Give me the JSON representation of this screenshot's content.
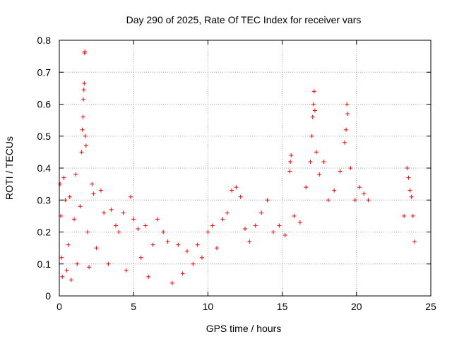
{
  "chart_data": {
    "type": "scatter",
    "title": "Day 290 of 2025, Rate Of TEC Index for receiver vars",
    "xlabel": "GPS time / hours",
    "ylabel": "ROTI / TECUs",
    "xlim": [
      0,
      25
    ],
    "ylim": [
      0,
      0.8
    ],
    "xticks": [
      "0",
      "5",
      "10",
      "15",
      "20",
      "25"
    ],
    "yticks": [
      "0",
      "0.1",
      "0.2",
      "0.3",
      "0.4",
      "0.5",
      "0.6",
      "0.7",
      "0.8"
    ],
    "grid": true,
    "marker": "plus",
    "color": "#ff0000",
    "series": [
      {
        "points": [
          [
            0.05,
            0.35
          ],
          [
            0.1,
            0.25
          ],
          [
            0.15,
            0.12
          ],
          [
            0.2,
            0.06
          ],
          [
            0.3,
            0.37
          ],
          [
            0.4,
            0.3
          ],
          [
            0.5,
            0.08
          ],
          [
            0.6,
            0.16
          ],
          [
            0.7,
            0.31
          ],
          [
            0.8,
            0.05
          ],
          [
            1.0,
            0.24
          ],
          [
            1.1,
            0.38
          ],
          [
            1.2,
            0.1
          ],
          [
            1.4,
            0.28
          ],
          [
            1.5,
            0.45
          ],
          [
            1.55,
            0.52
          ],
          [
            1.6,
            0.56
          ],
          [
            1.62,
            0.615
          ],
          [
            1.65,
            0.645
          ],
          [
            1.68,
            0.665
          ],
          [
            1.7,
            0.76
          ],
          [
            1.72,
            0.765
          ],
          [
            1.75,
            0.5
          ],
          [
            1.8,
            0.47
          ],
          [
            1.9,
            0.2
          ],
          [
            2.0,
            0.09
          ],
          [
            2.2,
            0.35
          ],
          [
            2.3,
            0.32
          ],
          [
            2.5,
            0.15
          ],
          [
            2.8,
            0.33
          ],
          [
            3.0,
            0.26
          ],
          [
            3.3,
            0.1
          ],
          [
            3.5,
            0.27
          ],
          [
            3.8,
            0.22
          ],
          [
            4.0,
            0.2
          ],
          [
            4.3,
            0.26
          ],
          [
            4.5,
            0.08
          ],
          [
            4.8,
            0.31
          ],
          [
            5.0,
            0.24
          ],
          [
            5.3,
            0.21
          ],
          [
            5.5,
            0.12
          ],
          [
            5.8,
            0.22
          ],
          [
            6.0,
            0.06
          ],
          [
            6.3,
            0.16
          ],
          [
            6.6,
            0.24
          ],
          [
            7.0,
            0.2
          ],
          [
            7.3,
            0.17
          ],
          [
            7.6,
            0.04
          ],
          [
            8.0,
            0.16
          ],
          [
            8.3,
            0.07
          ],
          [
            8.6,
            0.14
          ],
          [
            9.0,
            0.1
          ],
          [
            9.3,
            0.16
          ],
          [
            9.6,
            0.12
          ],
          [
            10.0,
            0.2
          ],
          [
            10.3,
            0.22
          ],
          [
            10.6,
            0.15
          ],
          [
            11.0,
            0.24
          ],
          [
            11.3,
            0.26
          ],
          [
            11.6,
            0.33
          ],
          [
            11.9,
            0.34
          ],
          [
            12.2,
            0.31
          ],
          [
            12.5,
            0.21
          ],
          [
            12.8,
            0.17
          ],
          [
            13.2,
            0.22
          ],
          [
            13.6,
            0.26
          ],
          [
            14.0,
            0.3
          ],
          [
            14.4,
            0.2
          ],
          [
            14.8,
            0.22
          ],
          [
            15.2,
            0.19
          ],
          [
            15.5,
            0.39
          ],
          [
            15.55,
            0.42
          ],
          [
            15.6,
            0.44
          ],
          [
            15.8,
            0.25
          ],
          [
            16.2,
            0.23
          ],
          [
            16.6,
            0.34
          ],
          [
            16.9,
            0.42
          ],
          [
            17.0,
            0.5
          ],
          [
            17.05,
            0.56
          ],
          [
            17.1,
            0.6
          ],
          [
            17.15,
            0.64
          ],
          [
            17.2,
            0.58
          ],
          [
            17.3,
            0.45
          ],
          [
            17.5,
            0.38
          ],
          [
            17.8,
            0.42
          ],
          [
            18.1,
            0.3
          ],
          [
            18.5,
            0.33
          ],
          [
            18.9,
            0.39
          ],
          [
            19.2,
            0.48
          ],
          [
            19.3,
            0.52
          ],
          [
            19.35,
            0.6
          ],
          [
            19.4,
            0.57
          ],
          [
            19.6,
            0.4
          ],
          [
            19.9,
            0.3
          ],
          [
            20.2,
            0.34
          ],
          [
            20.5,
            0.32
          ],
          [
            20.8,
            0.3
          ],
          [
            23.2,
            0.25
          ],
          [
            23.4,
            0.4
          ],
          [
            23.5,
            0.37
          ],
          [
            23.6,
            0.33
          ],
          [
            23.7,
            0.31
          ],
          [
            23.8,
            0.25
          ],
          [
            23.9,
            0.17
          ]
        ]
      }
    ]
  }
}
